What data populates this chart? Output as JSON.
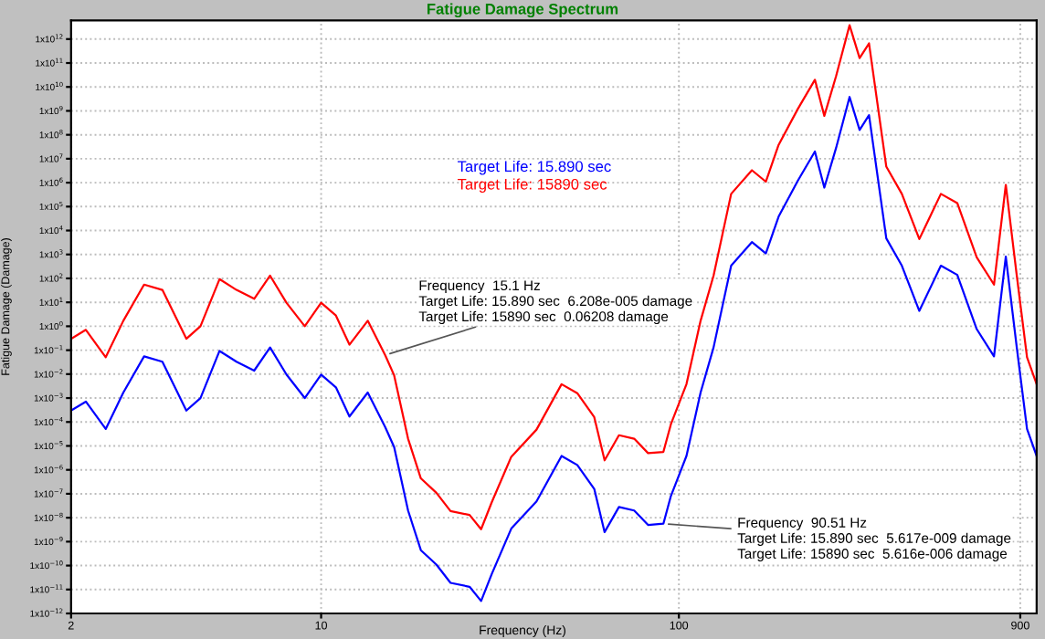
{
  "chart_data": {
    "type": "line",
    "title": "Fatigue Damage Spectrum",
    "xlabel": "Frequency (Hz)",
    "ylabel": "Fatigue Damage (Damage)",
    "log": "xy",
    "grid": true,
    "legend": false,
    "xlim": [
      2,
      1000
    ],
    "xticks": [
      2,
      10,
      100,
      900
    ],
    "ylim": [
      1e-12,
      6000000000000.0
    ],
    "yticks": [
      {
        "value": 1e-12,
        "label": "1x10$^{−12}$"
      },
      {
        "value": 1e-11,
        "label": "1x10$^{−11}$"
      },
      {
        "value": 1e-10,
        "label": "1x10$^{−10}$"
      },
      {
        "value": 1e-09,
        "label": "1x10$^{−9}$"
      },
      {
        "value": 1e-08,
        "label": "1x10$^{−8}$"
      },
      {
        "value": 1e-07,
        "label": "1x10$^{−7}$"
      },
      {
        "value": 1e-06,
        "label": "1x10$^{−6}$"
      },
      {
        "value": 1e-05,
        "label": "1x10$^{−5}$"
      },
      {
        "value": 0.0001,
        "label": "1x10$^{−4}$"
      },
      {
        "value": 0.001,
        "label": "1x10$^{−3}$"
      },
      {
        "value": 0.01,
        "label": "1x10$^{−2}$"
      },
      {
        "value": 0.1,
        "label": "1x10$^{−1}$"
      },
      {
        "value": 1,
        "label": "1x10$^{0}$"
      },
      {
        "value": 10,
        "label": "1x10$^{1}$"
      },
      {
        "value": 100,
        "label": "1x10$^{2}$"
      },
      {
        "value": 1000.0,
        "label": "1x10$^{3}$"
      },
      {
        "value": 10000.0,
        "label": "1x10$^{4}$"
      },
      {
        "value": 100000.0,
        "label": "1x10$^{5}$"
      },
      {
        "value": 1000000.0,
        "label": "1x10$^{6}$"
      },
      {
        "value": 10000000.0,
        "label": "1x10$^{7}$"
      },
      {
        "value": 100000000.0,
        "label": "1x10$^{8}$"
      },
      {
        "value": 1000000000.0,
        "label": "1x10$^{9}$"
      },
      {
        "value": 10000000000.0,
        "label": "1x10$^{10}$"
      },
      {
        "value": 100000000000.0,
        "label": "1x10$^{11}$"
      },
      {
        "value": 1000000000000.0,
        "label": "1x10$^{12}$"
      }
    ],
    "x": [
      2,
      2.2,
      2.5,
      2.8,
      3.2,
      3.6,
      4.2,
      4.6,
      5.2,
      5.8,
      6.5,
      7.2,
      8,
      9,
      10,
      11,
      12,
      13.5,
      15.1,
      16,
      17.5,
      19,
      21,
      23,
      26,
      28,
      30,
      34,
      40,
      47,
      52,
      58,
      62,
      68,
      75,
      82,
      90.51,
      95,
      105,
      115,
      125,
      140,
      160,
      175,
      190,
      215,
      240,
      255,
      275,
      300,
      320,
      340,
      380,
      420,
      470,
      540,
      600,
      680,
      760,
      820,
      880,
      940,
      1000
    ],
    "series": [
      {
        "name": "Target Life: 15.890 sec",
        "color": "#0000ff",
        "values": [
          0.0003,
          0.00071,
          5.1e-05,
          0.0017,
          0.055,
          0.033,
          0.0003,
          0.001,
          0.093,
          0.033,
          0.014,
          0.13,
          0.0096,
          0.001,
          0.0096,
          0.0028,
          0.00017,
          0.0017,
          6.208e-05,
          8.9e-06,
          2e-08,
          4.4e-10,
          1.1e-10,
          1.9e-11,
          1.3e-11,
          3.3e-12,
          4.5e-11,
          3.5e-09,
          4.8e-08,
          3.8e-06,
          1.6e-06,
          1.6e-07,
          2.5e-09,
          2.8e-08,
          2e-08,
          5e-09,
          5.617e-09,
          8.1e-08,
          3.8e-06,
          0.0017,
          0.13,
          340,
          3300,
          1100,
          38000.0,
          1200000.0,
          20000000.0,
          620000.0,
          28000000.0,
          3800000000.0,
          160000000.0,
          660000000.0,
          4700.0,
          340,
          4.4,
          340,
          140,
          0.76,
          0.055,
          810,
          0.13,
          5.1e-05,
          3.8e-06
        ]
      },
      {
        "name": "Target Life: 15890 sec",
        "color": "#ff0000",
        "values": [
          0.3,
          0.71,
          0.051,
          1.7,
          55,
          33,
          0.3,
          1,
          93,
          33,
          14,
          130,
          9.6,
          1,
          9.6,
          2.8,
          0.17,
          1.7,
          0.06208,
          0.0089,
          2e-05,
          4.4e-07,
          1.1e-07,
          1.9e-08,
          1.3e-08,
          3.3e-09,
          4.5e-08,
          3.5e-06,
          4.8e-05,
          0.0038,
          0.0016,
          0.00016,
          2.5e-06,
          2.8e-05,
          2e-05,
          5e-06,
          5.616e-06,
          8.1e-05,
          0.0038,
          1.7,
          130,
          340000.0,
          3300000.0,
          1100000.0,
          38000000.0,
          1200000000.0,
          20000000000.0,
          620000000.0,
          28000000000.0,
          3800000000000.0,
          160000000000.0,
          660000000000.0,
          4700000.0,
          340000.0,
          4400.0,
          340000.0,
          140000.0,
          760,
          55,
          810000.0,
          130,
          0.051,
          0.0038
        ]
      }
    ],
    "annotations": [
      {
        "text": "Frequency  15.1 Hz\nTarget Life: 15.890 sec  6.208e-005 damage\nTarget Life: 15890 sec  0.06208 damage",
        "x": 15.1,
        "y": 0.06208
      },
      {
        "text": "Frequency  90.51 Hz\nTarget Life: 15.890 sec  5.617e-009 damage\nTarget Life: 15890 sec  5.616e-006 damage",
        "x": 90.51,
        "y": 5.617e-09
      }
    ]
  }
}
